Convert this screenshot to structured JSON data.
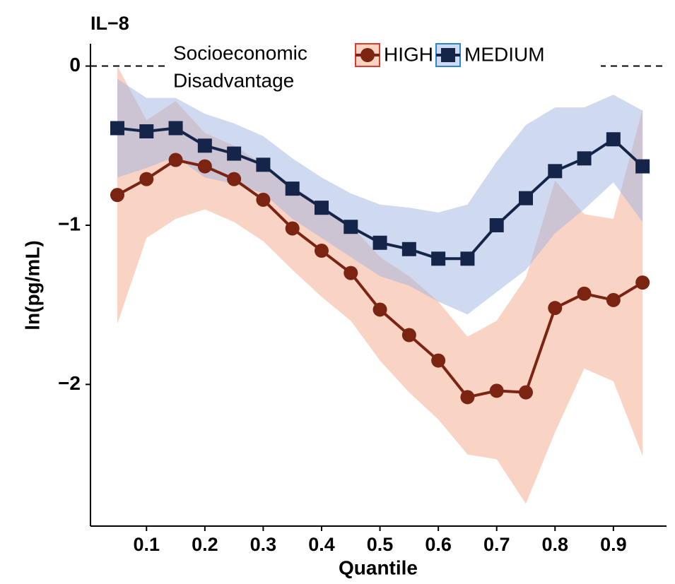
{
  "chart_data": {
    "type": "line",
    "title": "IL−8",
    "x_label": "Quantile",
    "y_label": "ln(pg/mL)",
    "legend_title": [
      "Socioeconomic",
      "Disadvantage"
    ],
    "legend_position": "top",
    "reference_line": 0,
    "x": [
      0.05,
      0.1,
      0.15,
      0.2,
      0.25,
      0.3,
      0.35,
      0.4,
      0.45,
      0.5,
      0.55,
      0.6,
      0.65,
      0.7,
      0.75,
      0.8,
      0.85,
      0.9,
      0.95
    ],
    "xlim": [
      0.004,
      0.991
    ],
    "xticks": [
      0.1,
      0.2,
      0.3,
      0.4,
      0.5,
      0.6,
      0.7,
      0.8,
      0.9
    ],
    "ylim": [
      -2.89,
      0.14
    ],
    "yticks": [
      {
        "value": -2,
        "label": "−2"
      },
      {
        "value": -1,
        "label": "−1"
      },
      0
    ],
    "series": [
      {
        "name": "HIGH",
        "color": "#7b2411",
        "band_color": "#f4a98c",
        "marker": "circle",
        "values": [
          -0.81,
          -0.71,
          -0.59,
          -0.63,
          -0.71,
          -0.84,
          -1.02,
          -1.16,
          -1.3,
          -1.53,
          -1.69,
          -1.85,
          -2.08,
          -2.04,
          -2.05,
          -1.52,
          -1.43,
          -1.47,
          -1.36
        ],
        "upper": [
          0.0,
          -0.34,
          -0.22,
          -0.42,
          -0.5,
          -0.62,
          -0.75,
          -0.88,
          -1.0,
          -1.2,
          -1.32,
          -1.48,
          -1.7,
          -1.6,
          -1.33,
          -0.72,
          -0.93,
          -0.96,
          -0.27
        ],
        "lower": [
          -1.62,
          -1.08,
          -0.96,
          -0.9,
          -0.98,
          -1.1,
          -1.28,
          -1.45,
          -1.6,
          -1.85,
          -2.05,
          -2.22,
          -2.44,
          -2.47,
          -2.75,
          -2.3,
          -1.9,
          -1.98,
          -2.45
        ]
      },
      {
        "name": "MEDIUM",
        "color": "#15254a",
        "band_color": "#9fb3df",
        "marker": "square",
        "values": [
          -0.39,
          -0.41,
          -0.39,
          -0.5,
          -0.55,
          -0.62,
          -0.77,
          -0.89,
          -1.01,
          -1.11,
          -1.15,
          -1.21,
          -1.21,
          -1.0,
          -0.83,
          -0.66,
          -0.58,
          -0.46,
          -0.63
        ],
        "upper": [
          -0.08,
          -0.2,
          -0.2,
          -0.3,
          -0.36,
          -0.44,
          -0.58,
          -0.7,
          -0.8,
          -0.87,
          -0.89,
          -0.92,
          -0.87,
          -0.6,
          -0.37,
          -0.26,
          -0.26,
          -0.18,
          -0.28
        ],
        "lower": [
          -0.7,
          -0.64,
          -0.57,
          -0.7,
          -0.74,
          -0.8,
          -0.96,
          -1.08,
          -1.2,
          -1.32,
          -1.38,
          -1.48,
          -1.56,
          -1.42,
          -1.28,
          -1.05,
          -0.9,
          -0.73,
          -0.98
        ]
      }
    ]
  }
}
